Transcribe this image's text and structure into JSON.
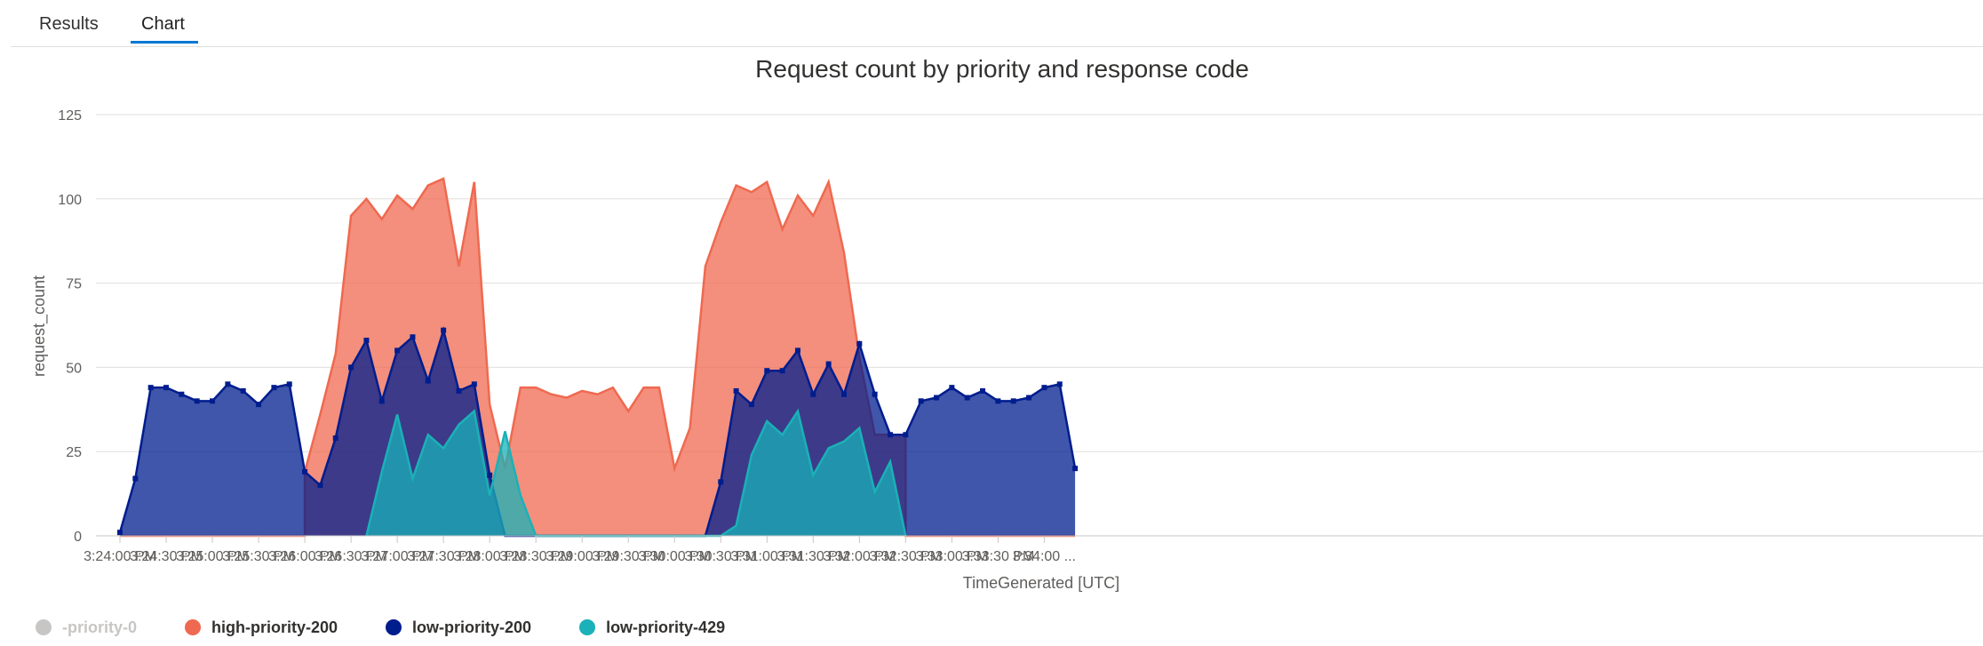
{
  "tabs": [
    {
      "label": "Results",
      "active": false
    },
    {
      "label": "Chart",
      "active": true
    }
  ],
  "chart_data": {
    "type": "area",
    "stacked": true,
    "title": "Request count by priority and response code",
    "xlabel": "TimeGenerated [UTC]",
    "ylabel": "request_count",
    "ylim": [
      0,
      125
    ],
    "yticks": [
      0,
      25,
      50,
      75,
      100,
      125
    ],
    "x_ticks": [
      "3:24:00 PM",
      "3:24:30 PM",
      "3:25:00 PM",
      "3:25:30 PM",
      "3:26:00 PM",
      "3:26:30 PM",
      "3:27:00 PM",
      "3:27:30 PM",
      "3:28:00 PM",
      "3:28:30 PM",
      "3:29:00 PM",
      "3:29:30 PM",
      "3:30:00 PM",
      "3:30:30 PM",
      "3:31:00 PM",
      "3:31:30 PM",
      "3:32:00 PM",
      "3:32:30 PM",
      "3:33:00 PM",
      "3:33:30 PM",
      "3:34:00 ..."
    ],
    "x": [
      "3:24:00 PM",
      "3:24:05 PM",
      "3:24:10 PM",
      "3:24:15 PM",
      "3:24:20 PM",
      "3:24:25 PM",
      "3:24:30 PM",
      "3:24:35 PM",
      "3:24:40 PM",
      "3:24:45 PM",
      "3:24:50 PM",
      "3:24:55 PM",
      "3:25:00 PM",
      "3:25:05 PM",
      "3:25:10 PM",
      "3:25:15 PM",
      "3:25:20 PM",
      "3:25:25 PM",
      "3:25:30 PM",
      "3:25:35 PM",
      "3:25:40 PM",
      "3:25:45 PM",
      "3:25:50 PM",
      "3:25:55 PM",
      "3:26:00 PM",
      "3:26:05 PM",
      "3:26:10 PM",
      "3:26:15 PM",
      "3:26:20 PM",
      "3:26:25 PM",
      "3:26:30 PM",
      "3:26:35 PM",
      "3:26:40 PM",
      "3:26:45 PM",
      "3:26:50 PM",
      "3:26:55 PM",
      "3:27:00 PM",
      "3:27:05 PM",
      "3:27:10 PM",
      "3:27:15 PM",
      "3:27:20 PM",
      "3:27:25 PM",
      "3:27:30 PM",
      "3:27:35 PM",
      "3:27:40 PM",
      "3:27:45 PM",
      "3:27:50 PM",
      "3:27:55 PM",
      "3:28:00 PM",
      "3:28:05 PM",
      "3:28:10 PM",
      "3:28:15 PM",
      "3:28:20 PM",
      "3:28:25 PM",
      "3:28:30 PM",
      "3:28:35 PM",
      "3:28:40 PM",
      "3:28:45 PM",
      "3:28:50 PM",
      "3:28:55 PM",
      "3:29:00 PM",
      "3:29:05 PM",
      "3:29:10 PM",
      "3:29:15 PM",
      "3:29:20 PM",
      "3:29:25 PM",
      "3:29:30 PM",
      "3:29:35 PM",
      "3:29:40 PM",
      "3:29:45 PM",
      "3:29:50 PM",
      "3:29:55 PM",
      "3:30:00 PM",
      "3:30:05 PM",
      "3:30:10 PM",
      "3:30:15 PM",
      "3:30:20 PM",
      "3:30:25 PM",
      "3:30:30 PM",
      "3:30:35 PM",
      "3:30:40 PM",
      "3:30:45 PM",
      "3:30:50 PM",
      "3:30:55 PM",
      "3:31:00 PM",
      "3:31:05 PM",
      "3:31:10 PM",
      "3:31:15 PM",
      "3:31:20 PM",
      "3:31:25 PM",
      "3:31:30 PM",
      "3:31:35 PM",
      "3:31:40 PM",
      "3:31:45 PM",
      "3:31:50 PM",
      "3:31:55 PM",
      "3:32:00 PM",
      "3:32:05 PM",
      "3:32:10 PM",
      "3:32:15 PM",
      "3:32:20 PM",
      "3:32:25 PM",
      "3:32:30 PM",
      "3:32:35 PM",
      "3:32:40 PM",
      "3:32:45 PM",
      "3:32:50 PM",
      "3:32:55 PM",
      "3:33:00 PM",
      "3:33:05 PM",
      "3:33:10 PM",
      "3:33:15 PM",
      "3:33:20 PM",
      "3:33:25 PM",
      "3:33:30 PM",
      "3:33:35 PM",
      "3:33:40 PM",
      "3:33:45 PM",
      "3:33:50 PM",
      "3:33:55 PM",
      "3:34:00 PM",
      "3:34:05 PM",
      "3:34:10 PM",
      "3:34:15 PM",
      "3:34:20 PM",
      "3:34:25 PM"
    ],
    "series": [
      {
        "name": "-priority-0",
        "color": "#c8c6c4",
        "hidden": true,
        "markers": false,
        "data": [
          [
            0,
            0
          ],
          [
            125,
            0
          ]
        ]
      },
      {
        "name": "low-priority-429",
        "color": "#1ab1b8",
        "markers": false,
        "data": [
          [
            32,
            0
          ],
          [
            34,
            19
          ],
          [
            36,
            36
          ],
          [
            38,
            17
          ],
          [
            40,
            30
          ],
          [
            42,
            26
          ],
          [
            44,
            33
          ],
          [
            46,
            37
          ],
          [
            48,
            12
          ],
          [
            50,
            31
          ],
          [
            52,
            12
          ],
          [
            54,
            0
          ],
          [
            76,
            0
          ],
          [
            78,
            0
          ],
          [
            80,
            3
          ],
          [
            82,
            24
          ],
          [
            84,
            34
          ],
          [
            86,
            30
          ],
          [
            88,
            37
          ],
          [
            90,
            18
          ],
          [
            92,
            26
          ],
          [
            94,
            28
          ],
          [
            96,
            32
          ],
          [
            98,
            13
          ],
          [
            100,
            22
          ],
          [
            102,
            0
          ]
        ]
      },
      {
        "name": "low-priority-200",
        "color": "#001d8e",
        "markers": true,
        "data": [
          [
            0,
            1
          ],
          [
            2,
            17
          ],
          [
            4,
            44
          ],
          [
            6,
            44
          ],
          [
            8,
            42
          ],
          [
            10,
            40
          ],
          [
            12,
            40
          ],
          [
            14,
            45
          ],
          [
            16,
            43
          ],
          [
            18,
            39
          ],
          [
            20,
            44
          ],
          [
            22,
            45
          ],
          [
            24,
            19
          ],
          [
            26,
            15
          ],
          [
            28,
            29
          ],
          [
            30,
            50
          ],
          [
            32,
            58
          ],
          [
            34,
            40
          ],
          [
            36,
            55
          ],
          [
            38,
            59
          ],
          [
            40,
            46
          ],
          [
            42,
            61
          ],
          [
            44,
            43
          ],
          [
            46,
            45
          ],
          [
            48,
            18
          ],
          [
            50,
            0
          ],
          [
            76,
            0
          ],
          [
            78,
            16
          ],
          [
            80,
            43
          ],
          [
            82,
            39
          ],
          [
            84,
            49
          ],
          [
            86,
            49
          ],
          [
            88,
            55
          ],
          [
            90,
            42
          ],
          [
            92,
            51
          ],
          [
            94,
            42
          ],
          [
            96,
            57
          ],
          [
            98,
            42
          ],
          [
            100,
            30
          ],
          [
            102,
            30
          ],
          [
            104,
            40
          ],
          [
            106,
            41
          ],
          [
            108,
            44
          ],
          [
            110,
            41
          ],
          [
            112,
            43
          ],
          [
            114,
            40
          ],
          [
            116,
            40
          ],
          [
            118,
            41
          ],
          [
            120,
            44
          ],
          [
            122,
            45
          ],
          [
            124,
            20
          ]
        ]
      },
      {
        "name": "high-priority-200",
        "color": "#ef6950",
        "markers": false,
        "data": [
          [
            0,
            0
          ],
          [
            24,
            0
          ],
          [
            24,
            19
          ],
          [
            26,
            36
          ],
          [
            28,
            54
          ],
          [
            30,
            95
          ],
          [
            32,
            100
          ],
          [
            34,
            94
          ],
          [
            36,
            101
          ],
          [
            38,
            97
          ],
          [
            40,
            104
          ],
          [
            42,
            106
          ],
          [
            44,
            80
          ],
          [
            46,
            105
          ],
          [
            48,
            39
          ],
          [
            50,
            20
          ],
          [
            52,
            44
          ],
          [
            54,
            44
          ],
          [
            56,
            42
          ],
          [
            58,
            41
          ],
          [
            60,
            43
          ],
          [
            62,
            42
          ],
          [
            64,
            44
          ],
          [
            66,
            37
          ],
          [
            68,
            44
          ],
          [
            70,
            44
          ],
          [
            72,
            20
          ],
          [
            74,
            32
          ],
          [
            76,
            80
          ],
          [
            78,
            93
          ],
          [
            80,
            104
          ],
          [
            82,
            102
          ],
          [
            84,
            105
          ],
          [
            86,
            91
          ],
          [
            88,
            101
          ],
          [
            90,
            95
          ],
          [
            92,
            105
          ],
          [
            94,
            84
          ],
          [
            96,
            53
          ],
          [
            98,
            30
          ],
          [
            100,
            30
          ],
          [
            102,
            30
          ],
          [
            102,
            0
          ],
          [
            124,
            0
          ]
        ]
      }
    ]
  },
  "legend": [
    {
      "label": "-priority-0",
      "color": "#c8c6c4",
      "muted": true
    },
    {
      "label": "high-priority-200",
      "color": "#ef6950",
      "muted": false
    },
    {
      "label": "low-priority-200",
      "color": "#001d8e",
      "muted": false
    },
    {
      "label": "low-priority-429",
      "color": "#1ab1b8",
      "muted": false
    }
  ]
}
